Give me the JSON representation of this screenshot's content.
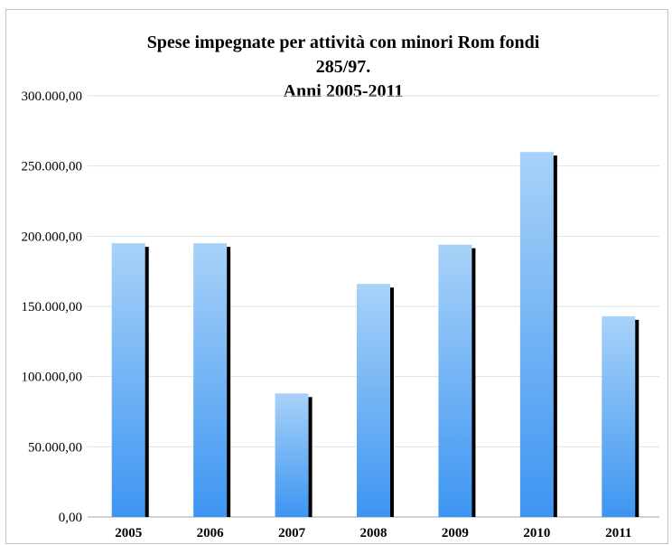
{
  "chart_data": {
    "type": "bar",
    "title": [
      "Spese impegnate per attività con minori Rom fondi",
      "285/97.",
      "Anni 2005-2011"
    ],
    "xlabel": "",
    "ylabel": "",
    "categories": [
      "2005",
      "2006",
      "2007",
      "2008",
      "2009",
      "2010",
      "2011"
    ],
    "values": [
      195000,
      195000,
      88000,
      166000,
      194000,
      260000,
      143000
    ],
    "ylim": [
      0,
      300000
    ],
    "yticks": [
      0,
      50000,
      100000,
      150000,
      200000,
      250000,
      300000
    ],
    "ytick_labels": [
      "0,00",
      "50.000,00",
      "100.000,00",
      "150.000,00",
      "200.000,00",
      "250.000,00",
      "300.000,00"
    ],
    "grid": true,
    "legend": "none",
    "colors": {
      "bar_top": "#a8d2f8",
      "bar_bottom": "#3d95f2",
      "shadow": "#000000",
      "grid": "#d9e3e3"
    }
  }
}
